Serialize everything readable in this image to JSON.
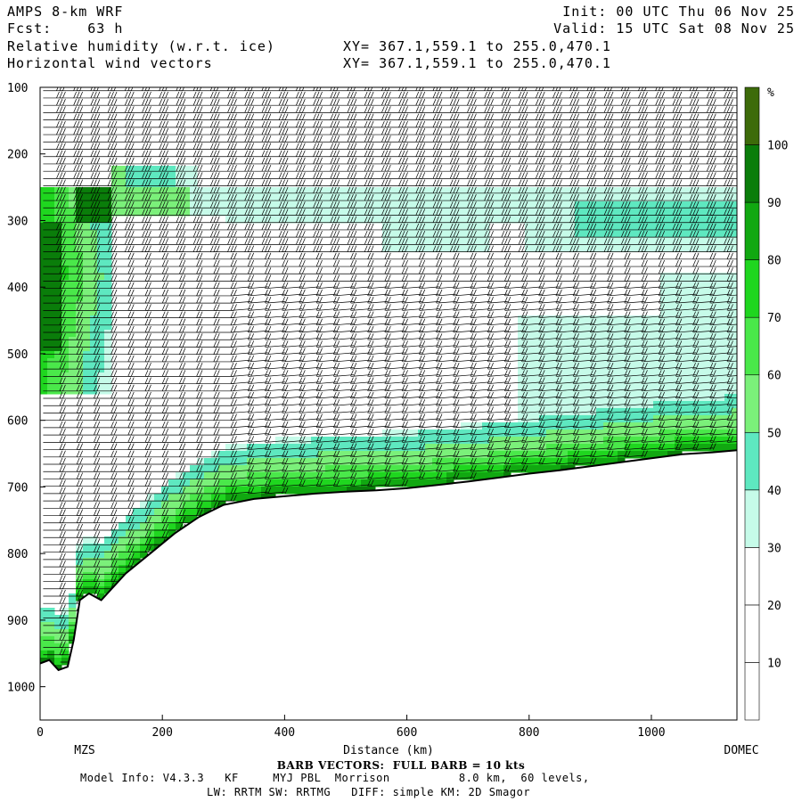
{
  "header": {
    "model": "AMPS 8-km WRF",
    "fcst": "Fcst:    63 h",
    "init": "Init: 00 UTC Thu 06 Nov 25",
    "valid": "Valid: 15 UTC Sat 08 Nov 25",
    "field1": "Relative humidity (w.r.t. ice)",
    "field2": "Horizontal wind vectors",
    "xy1": "XY= 367.1,559.1 to 255.0,470.1",
    "xy2": "XY= 367.1,559.1 to 255.0,470.1"
  },
  "chart_data": {
    "type": "heatmap",
    "xlabel": "Distance (km)",
    "ylabel": "",
    "xlim": [
      0,
      1140
    ],
    "ylim": [
      1050,
      100
    ],
    "x_ticks": [
      "0",
      "200",
      "400",
      "600",
      "800",
      "1000"
    ],
    "y_ticks": [
      "100",
      "200",
      "300",
      "400",
      "500",
      "600",
      "700",
      "800",
      "900",
      "1000"
    ],
    "x_tick_values": [
      0,
      200,
      400,
      600,
      800,
      1000
    ],
    "y_tick_values": [
      100,
      200,
      300,
      400,
      500,
      600,
      700,
      800,
      900,
      1000
    ],
    "start_label": "MZS",
    "end_label": "DOMEC",
    "colorbar": {
      "unit": "%",
      "levels": [
        10,
        20,
        30,
        40,
        50,
        60,
        70,
        80,
        90,
        100
      ],
      "tick_labels": [
        "10",
        "20",
        "30",
        "40",
        "50",
        "60",
        "70",
        "80",
        "90",
        "100"
      ],
      "colors": [
        "#ffffff",
        "#ffffff",
        "#ffffff",
        "#c6fbe9",
        "#5ee8c0",
        "#7bf07a",
        "#4ae84a",
        "#1fd61f",
        "#11a811",
        "#0a7d0a",
        "#3d6b0a"
      ]
    },
    "terrain": {
      "x": [
        0,
        15,
        30,
        45,
        55,
        65,
        80,
        100,
        140,
        180,
        220,
        260,
        300,
        350,
        400,
        450,
        500,
        550,
        600,
        650,
        700,
        750,
        800,
        850,
        900,
        950,
        1000,
        1050,
        1100,
        1140
      ],
      "p": [
        965,
        960,
        975,
        970,
        930,
        870,
        860,
        870,
        830,
        800,
        770,
        745,
        727,
        718,
        714,
        710,
        707,
        705,
        702,
        697,
        692,
        686,
        680,
        675,
        669,
        663,
        657,
        651,
        648,
        645
      ]
    }
  },
  "footer": {
    "barb_note": "BARB VECTORS:  FULL BARB = 10 kts",
    "model_info": "Model Info: V4.3.3   KF     MYJ PBL  Morrison          8.0 km,  60 levels,",
    "physics": "LW: RRTM SW: RRTMG   DIFF: simple KM: 2D Smagor"
  }
}
